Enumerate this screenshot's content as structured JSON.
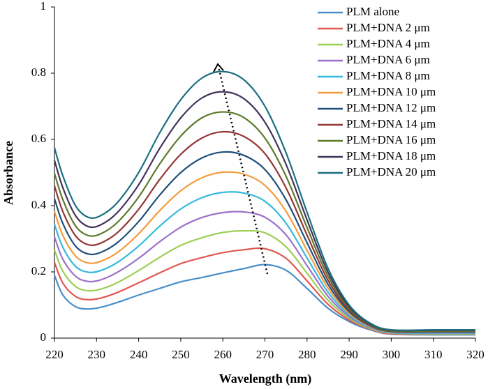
{
  "chart_data": {
    "type": "line",
    "x_label": "Wavelength (nm)",
    "y_label": "Absorbance",
    "x": [
      220,
      222,
      225,
      228,
      231,
      235,
      240,
      245,
      250,
      255,
      260,
      265,
      270,
      275,
      280,
      285,
      290,
      295,
      300,
      310,
      320
    ],
    "xlim": [
      220,
      320
    ],
    "xticks": [
      220,
      230,
      240,
      250,
      260,
      270,
      280,
      290,
      300,
      310,
      320
    ],
    "ylim": [
      0,
      1
    ],
    "yticks": [
      0,
      0.2,
      0.4,
      0.6,
      0.8,
      1
    ],
    "grid": false,
    "legend": "top-right",
    "series": [
      {
        "name": "PLM alone",
        "color": "#4a8fc9",
        "values": [
          0.19,
          0.13,
          0.095,
          0.088,
          0.093,
          0.108,
          0.13,
          0.15,
          0.17,
          0.183,
          0.197,
          0.21,
          0.222,
          0.205,
          0.15,
          0.09,
          0.05,
          0.025,
          0.012,
          0.01,
          0.01
        ]
      },
      {
        "name": "PLM+DNA 2 μm",
        "color": "#e0574f",
        "values": [
          0.229,
          0.166,
          0.126,
          0.116,
          0.121,
          0.138,
          0.167,
          0.197,
          0.225,
          0.243,
          0.258,
          0.267,
          0.27,
          0.241,
          0.173,
          0.102,
          0.055,
          0.027,
          0.013,
          0.012,
          0.012
        ]
      },
      {
        "name": "PLM+DNA 4 μm",
        "color": "#9bcf55",
        "values": [
          0.267,
          0.202,
          0.156,
          0.143,
          0.148,
          0.168,
          0.204,
          0.244,
          0.28,
          0.303,
          0.319,
          0.324,
          0.318,
          0.276,
          0.196,
          0.114,
          0.06,
          0.029,
          0.015,
          0.013,
          0.013
        ]
      },
      {
        "name": "PLM+DNA 6 μm",
        "color": "#9b71c9",
        "values": [
          0.306,
          0.238,
          0.187,
          0.171,
          0.176,
          0.199,
          0.241,
          0.291,
          0.335,
          0.364,
          0.379,
          0.381,
          0.365,
          0.312,
          0.219,
          0.126,
          0.065,
          0.031,
          0.016,
          0.015,
          0.015
        ]
      },
      {
        "name": "PLM+DNA 8 μm",
        "color": "#35b9dc",
        "values": [
          0.344,
          0.274,
          0.217,
          0.199,
          0.204,
          0.229,
          0.278,
          0.338,
          0.39,
          0.424,
          0.44,
          0.438,
          0.413,
          0.347,
          0.242,
          0.138,
          0.07,
          0.033,
          0.017,
          0.016,
          0.016
        ]
      },
      {
        "name": "PLM+DNA 10 μm",
        "color": "#f59b3b",
        "values": [
          0.383,
          0.31,
          0.248,
          0.227,
          0.232,
          0.259,
          0.315,
          0.385,
          0.445,
          0.484,
          0.501,
          0.495,
          0.461,
          0.383,
          0.265,
          0.15,
          0.075,
          0.035,
          0.019,
          0.018,
          0.018
        ]
      },
      {
        "name": "PLM+DNA 12 μm",
        "color": "#1f4f7c",
        "values": [
          0.421,
          0.346,
          0.278,
          0.254,
          0.259,
          0.289,
          0.352,
          0.432,
          0.5,
          0.544,
          0.562,
          0.552,
          0.509,
          0.418,
          0.288,
          0.162,
          0.08,
          0.037,
          0.02,
          0.019,
          0.019
        ]
      },
      {
        "name": "PLM+DNA 14 μm",
        "color": "#943634",
        "values": [
          0.46,
          0.382,
          0.309,
          0.282,
          0.287,
          0.319,
          0.389,
          0.479,
          0.555,
          0.604,
          0.623,
          0.609,
          0.557,
          0.454,
          0.311,
          0.174,
          0.085,
          0.039,
          0.021,
          0.021,
          0.021
        ]
      },
      {
        "name": "PLM+DNA 16 μm",
        "color": "#5b7a2a",
        "values": [
          0.498,
          0.418,
          0.339,
          0.31,
          0.315,
          0.35,
          0.426,
          0.526,
          0.61,
          0.665,
          0.683,
          0.666,
          0.604,
          0.489,
          0.334,
          0.186,
          0.09,
          0.041,
          0.022,
          0.022,
          0.022
        ]
      },
      {
        "name": "PLM+DNA 18 μm",
        "color": "#41325a",
        "values": [
          0.537,
          0.454,
          0.37,
          0.337,
          0.342,
          0.38,
          0.463,
          0.573,
          0.665,
          0.725,
          0.744,
          0.723,
          0.652,
          0.525,
          0.357,
          0.198,
          0.095,
          0.043,
          0.024,
          0.024,
          0.024
        ]
      },
      {
        "name": "PLM+DNA 20 μm",
        "color": "#1b6f80",
        "values": [
          0.575,
          0.49,
          0.4,
          0.365,
          0.37,
          0.41,
          0.5,
          0.62,
          0.72,
          0.785,
          0.805,
          0.78,
          0.7,
          0.56,
          0.38,
          0.21,
          0.1,
          0.045,
          0.025,
          0.025,
          0.025
        ]
      }
    ]
  }
}
